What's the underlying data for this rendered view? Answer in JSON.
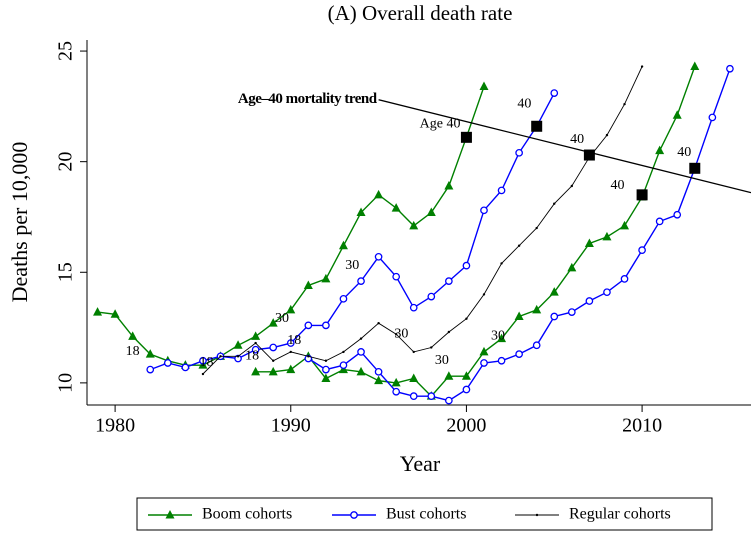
{
  "chart_data": {
    "type": "line",
    "title": "(A) Overall death rate",
    "x_label": "Year",
    "y_label": "Deaths per 10,000",
    "xlim": [
      1978.4,
      2016.2
    ],
    "ylim": [
      9,
      25.5
    ],
    "xticks": [
      1980,
      1990,
      2000,
      2010
    ],
    "yticks": [
      10,
      15,
      20,
      25
    ],
    "grid": false,
    "legend": "bottom",
    "series": [
      {
        "name": "Boom cohorts",
        "color": "#008000",
        "marker": "triangle",
        "x": [
          1979,
          1980,
          1981,
          1982,
          1983,
          1984,
          1985,
          1986,
          1987,
          1988,
          1989,
          1990,
          1991,
          1992,
          1993,
          1994,
          1995,
          1996,
          1997,
          1998,
          1999,
          2000,
          2001,
          null,
          1988,
          1989,
          1990,
          1991,
          1992,
          1993,
          1994,
          1995,
          1996,
          1997,
          1998,
          1999,
          2000,
          2001,
          2002,
          2003,
          2004,
          2005,
          2006,
          2007,
          2008,
          2009,
          2010,
          2011,
          2012,
          2013
        ],
        "values": [
          13.2,
          13.1,
          12.1,
          11.3,
          11.0,
          10.8,
          10.8,
          11.2,
          11.7,
          12.1,
          12.7,
          13.3,
          14.4,
          14.7,
          16.2,
          17.7,
          18.5,
          17.9,
          17.1,
          17.7,
          18.9,
          21.1,
          23.4,
          null,
          10.5,
          10.5,
          10.6,
          11.2,
          10.2,
          10.6,
          10.5,
          10.1,
          10.0,
          10.2,
          9.4,
          10.3,
          10.3,
          11.4,
          12.0,
          13.0,
          13.3,
          14.1,
          15.2,
          16.3,
          16.6,
          17.1,
          18.4,
          20.5,
          22.1,
          24.3
        ]
      },
      {
        "name": "Bust cohorts",
        "color": "#0000ff",
        "marker": "circle",
        "x": [
          1982,
          1983,
          1984,
          1985,
          1986,
          1987,
          1988,
          1989,
          1990,
          1991,
          1992,
          1993,
          1994,
          1995,
          1996,
          1997,
          1998,
          1999,
          2000,
          2001,
          2002,
          2003,
          2004,
          2005,
          null,
          1991,
          1992,
          1993,
          1994,
          1995,
          1996,
          1997,
          1998,
          1999,
          2000,
          2001,
          2002,
          2003,
          2004,
          2005,
          2006,
          2007,
          2008,
          2009,
          2010,
          2011,
          2012,
          2013,
          2014,
          2015
        ],
        "values": [
          10.6,
          10.9,
          10.7,
          11.0,
          11.2,
          11.1,
          11.5,
          11.6,
          11.8,
          12.6,
          12.6,
          13.8,
          14.6,
          15.7,
          14.8,
          13.4,
          13.9,
          14.6,
          15.3,
          17.8,
          18.7,
          20.4,
          21.6,
          23.1,
          null,
          11.1,
          10.6,
          10.8,
          11.4,
          10.5,
          9.6,
          9.4,
          9.4,
          9.2,
          9.7,
          10.9,
          11.0,
          11.3,
          11.7,
          13.0,
          13.2,
          13.7,
          14.1,
          14.7,
          16.0,
          17.3,
          17.6,
          19.7,
          22.0,
          24.2
        ]
      },
      {
        "name": "Regular cohorts",
        "color": "#000000",
        "marker": "dot",
        "x": [
          1985,
          1986,
          1987,
          1988,
          1989,
          1990,
          1991,
          1992,
          1993,
          1994,
          1995,
          1996,
          1997,
          1998,
          1999,
          2000,
          2001,
          2002,
          2003,
          2004,
          2005,
          2006,
          2007,
          2008,
          2009,
          2010
        ],
        "values": [
          10.4,
          11.2,
          11.2,
          11.8,
          11.0,
          11.4,
          11.2,
          11.0,
          11.4,
          12.0,
          12.7,
          12.2,
          11.4,
          11.6,
          12.3,
          12.9,
          14.0,
          15.4,
          16.2,
          17.0,
          18.1,
          18.9,
          20.2,
          21.2,
          22.6,
          24.3
        ]
      }
    ],
    "trend": {
      "label": "Age–40 mortality trend",
      "x": [
        1995,
        2016.2
      ],
      "values": [
        22.8,
        18.6
      ]
    },
    "age40_points": {
      "x": [
        2000,
        2004,
        2007,
        2010,
        2013
      ],
      "values": [
        21.1,
        21.6,
        20.3,
        18.5,
        19.7
      ]
    },
    "annotations": [
      {
        "text": "18",
        "x": 1981,
        "y": 11.4
      },
      {
        "text": "18",
        "x": 1985.2,
        "y": 10.9
      },
      {
        "text": "18",
        "x": 1987.8,
        "y": 11.2
      },
      {
        "text": "18",
        "x": 1990.2,
        "y": 11.9
      },
      {
        "text": "30",
        "x": 1989.5,
        "y": 12.9
      },
      {
        "text": "30",
        "x": 1993.5,
        "y": 15.3
      },
      {
        "text": "30",
        "x": 1996.3,
        "y": 12.2
      },
      {
        "text": "30",
        "x": 1998.6,
        "y": 11.0
      },
      {
        "text": "30",
        "x": 2001.8,
        "y": 12.1
      },
      {
        "text": "Age 40",
        "x": 1998.5,
        "y": 21.7
      },
      {
        "text": "40",
        "x": 2003.3,
        "y": 22.6
      },
      {
        "text": "40",
        "x": 2006.3,
        "y": 21.0
      },
      {
        "text": "40",
        "x": 2008.6,
        "y": 18.9
      },
      {
        "text": "40",
        "x": 2012.4,
        "y": 20.4
      }
    ]
  }
}
